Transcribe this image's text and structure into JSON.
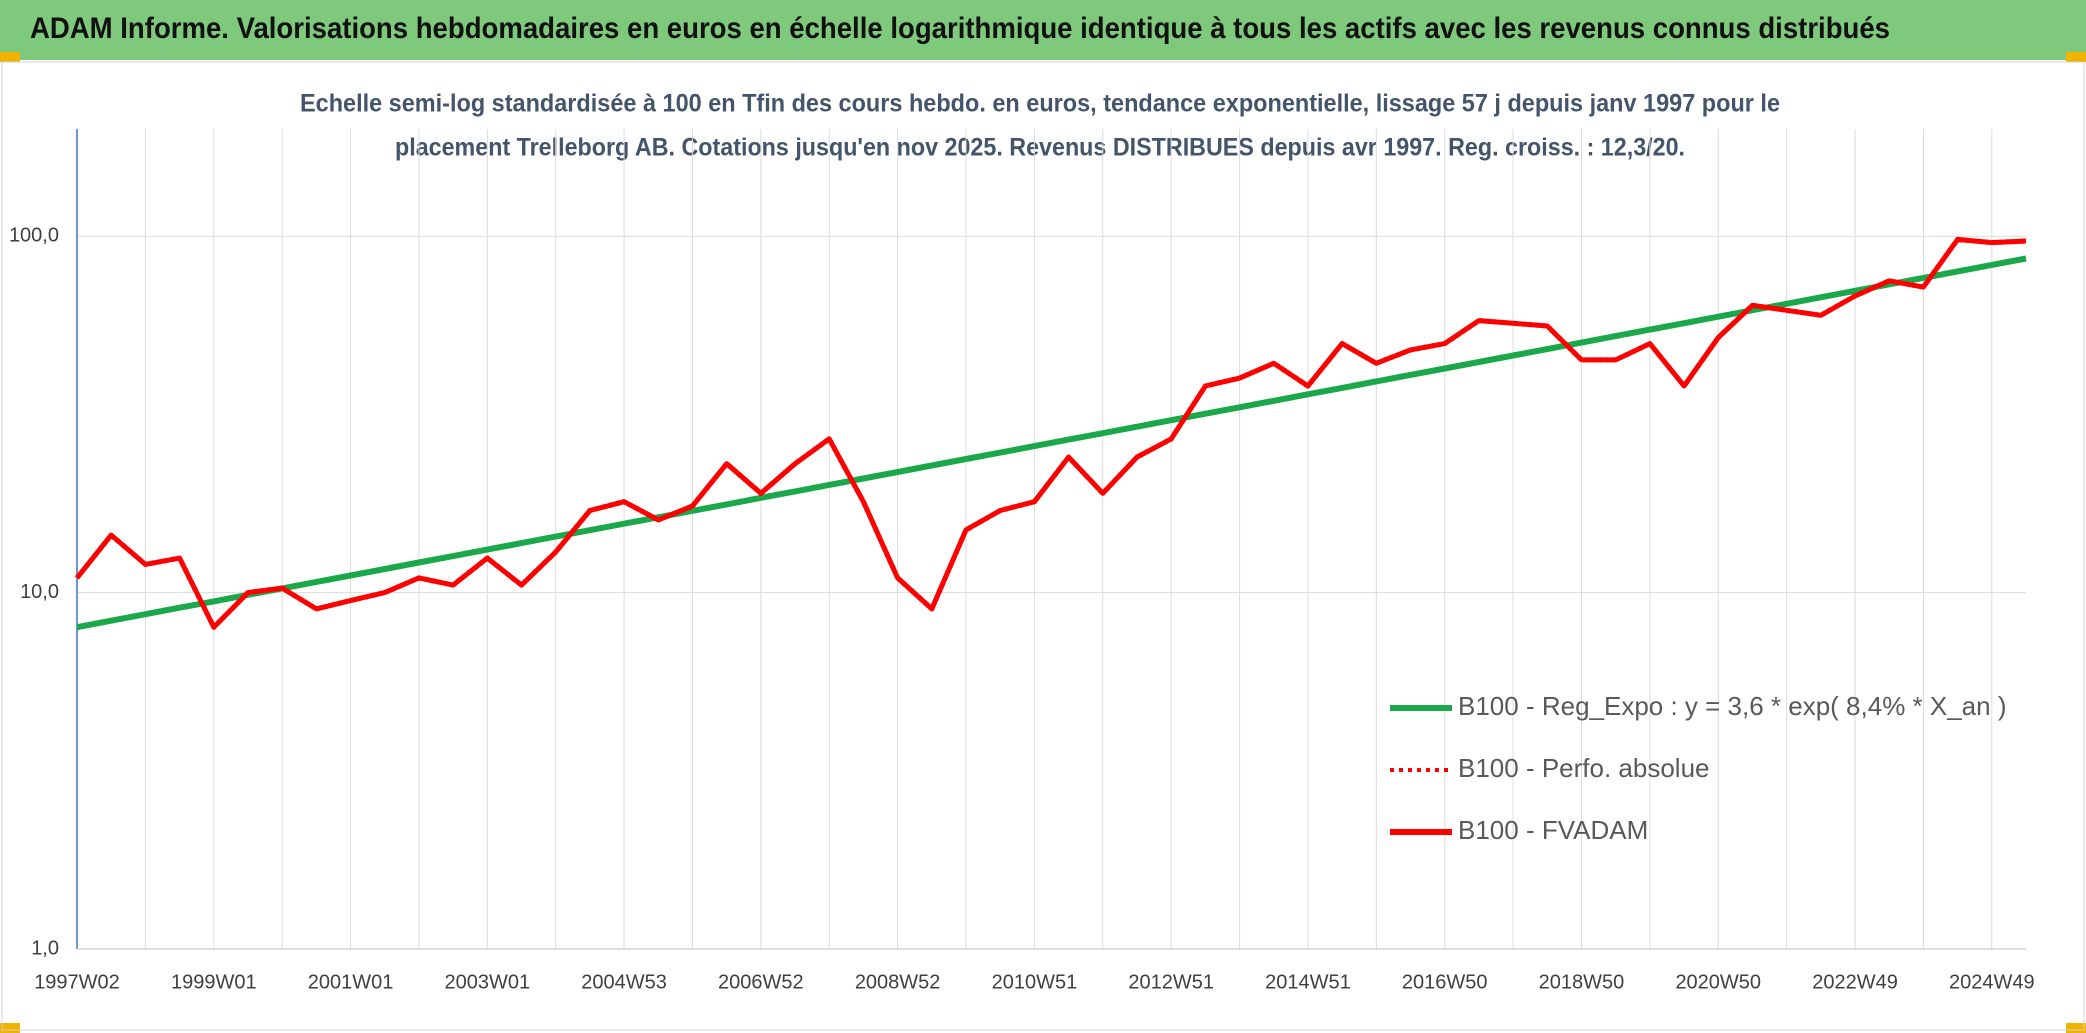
{
  "chart_data": {
    "type": "line",
    "title": "ADAM Informe. Valorisations hebdomadaires en euros en échelle logarithmique identique à tous les actifs avec les revenus connus distribués",
    "subtitle": [
      "Echelle semi-log standardisée à 100 en Tfin des cours hebdo. en euros, tendance exponentielle, lissage 57 j depuis janv 1997 pour le",
      "placement Trelleborg AB. Cotations jusqu'en nov 2025. Revenus DISTRIBUES depuis avr 1997. Reg. croiss. : 12,3/20."
    ],
    "categories": [
      "1997W02",
      null,
      null,
      null,
      "1999W01",
      null,
      null,
      null,
      "2001W01",
      null,
      null,
      null,
      "2003W01",
      null,
      null,
      null,
      "2004W53",
      null,
      null,
      null,
      "2006W52",
      null,
      null,
      null,
      "2008W52",
      null,
      null,
      null,
      "2010W51",
      null,
      null,
      null,
      "2012W51",
      null,
      null,
      null,
      "2014W51",
      null,
      null,
      null,
      "2016W50",
      null,
      null,
      null,
      "2018W50",
      null,
      null,
      null,
      "2020W50",
      null,
      null,
      null,
      "2022W49",
      null,
      null,
      null,
      "2024W49",
      null
    ],
    "log_scale": "y",
    "ylim": [
      1,
      200
    ],
    "yticks": [
      {
        "value": 1,
        "label": "1,0"
      },
      {
        "value": 10,
        "label": "10,0"
      },
      {
        "value": 100,
        "label": "100,0"
      }
    ],
    "grid": true,
    "legend": "right",
    "series": [
      {
        "name": "B100 - Reg_Expo : y = 3,6 * exp( 8,4% *  X_an )",
        "color": "#1aa84a",
        "style": "solid",
        "values": [
          8.0,
          8.34,
          8.7,
          9.07,
          9.45,
          9.86,
          10.28,
          10.72,
          11.17,
          11.65,
          12.15,
          12.66,
          13.21,
          13.77,
          14.36,
          14.97,
          15.61,
          16.27,
          16.97,
          17.69,
          18.45,
          19.24,
          20.06,
          20.91,
          21.81,
          22.74,
          23.71,
          24.72,
          25.77,
          26.88,
          28.02,
          29.22,
          30.47,
          31.77,
          33.12,
          34.54,
          36.01,
          37.55,
          39.15,
          40.83,
          42.56,
          44.38,
          46.28,
          48.25,
          50.31,
          52.46,
          54.7,
          57.04,
          59.47,
          62.01,
          64.66,
          67.42,
          70.3,
          73.3,
          76.43,
          79.7,
          83.1,
          86.65
        ]
      },
      {
        "name": "B100 - Perfo. absolue",
        "color": "#ff0000",
        "style": "dotted",
        "values": [
          11,
          14.5,
          12,
          12.5,
          8,
          10,
          10.3,
          9,
          9.5,
          10,
          11,
          10.5,
          12.5,
          10.5,
          13,
          17,
          18,
          16,
          17.5,
          23,
          19,
          23,
          27,
          18,
          11,
          9,
          15,
          17,
          18,
          24,
          19,
          24,
          27,
          38,
          40,
          44,
          38,
          50,
          44,
          48,
          50,
          58,
          57,
          56,
          45,
          45,
          50,
          38,
          52,
          64,
          62,
          60,
          68,
          75,
          72,
          98,
          96,
          97
        ]
      },
      {
        "name": "B100 - FVADAM",
        "color": "#ff0000",
        "style": "solid",
        "values": [
          11,
          14.5,
          12,
          12.5,
          8,
          10,
          10.3,
          9,
          9.5,
          10,
          11,
          10.5,
          12.5,
          10.5,
          13,
          17,
          18,
          16,
          17.5,
          23,
          19,
          23,
          27,
          18,
          11,
          9,
          15,
          17,
          18,
          24,
          19,
          24,
          27,
          38,
          40,
          44,
          38,
          50,
          44,
          48,
          50,
          58,
          57,
          56,
          45,
          45,
          50,
          38,
          52,
          64,
          62,
          60,
          68,
          75,
          72,
          98,
          96,
          97
        ]
      }
    ]
  }
}
